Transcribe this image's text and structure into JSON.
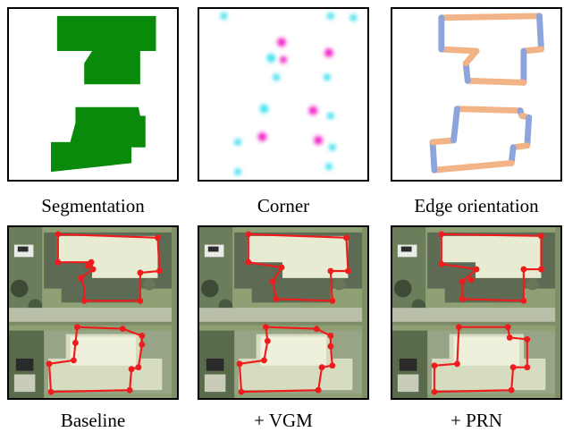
{
  "figure": {
    "row1": [
      {
        "caption": "Segmentation"
      },
      {
        "caption": "Corner"
      },
      {
        "caption": "Edge orientation"
      }
    ],
    "row2": [
      {
        "caption": "Baseline"
      },
      {
        "caption": "+ VGM"
      },
      {
        "caption": "+ PRN"
      }
    ]
  },
  "colors": {
    "segmentation": "#0a8a0a",
    "corner_cyan": "#3fe0f0",
    "corner_magenta": "#f020c8",
    "edge_horizontal": "#f2b486",
    "edge_vertical": "#8ea4dc",
    "polygon": "#ee1c1c",
    "aerial_grass": "#8fa174",
    "aerial_road": "#b9bfa9"
  }
}
